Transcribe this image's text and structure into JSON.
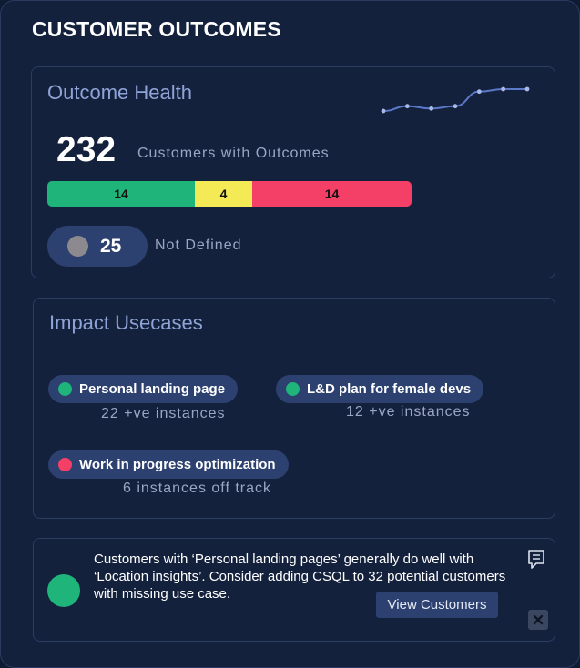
{
  "app": {
    "title": "CUSTOMER OUTCOMES"
  },
  "outcome_health": {
    "title": "Outcome Health",
    "sparkline_trend": [
      0,
      2,
      1,
      2,
      8,
      9,
      9
    ],
    "customers_count": "232",
    "customers_label": "Customers with Outcomes",
    "status_segments": [
      {
        "label": "14",
        "value": 14,
        "color": "#1fb57a"
      },
      {
        "label": "4",
        "value": 4,
        "color": "#f3ea55"
      },
      {
        "label": "14",
        "value": 14,
        "color": "#f43f66"
      }
    ],
    "not_defined_count": "25",
    "not_defined_label": "Not Defined"
  },
  "impact_usecases": {
    "title": "Impact Usecases",
    "items": [
      {
        "label": "Personal landing page",
        "status_color": "#1fb57a",
        "subtitle": "22 +ve instances"
      },
      {
        "label": "L&D plan for female devs",
        "status_color": "#1fb57a",
        "subtitle": "12 +ve instances"
      },
      {
        "label": "Work in progress optimization",
        "status_color": "#f43f66",
        "subtitle": "6 instances off track"
      }
    ]
  },
  "insight": {
    "text": "Customers with ‘Personal landing pages’ generally do well with ‘Location insights’. Consider adding CSQL to 32 potential customers with missing use case.",
    "indicator_color": "#1fb57a",
    "button_label": "View Customers",
    "icons": [
      "comment-icon",
      "close-icon"
    ]
  }
}
